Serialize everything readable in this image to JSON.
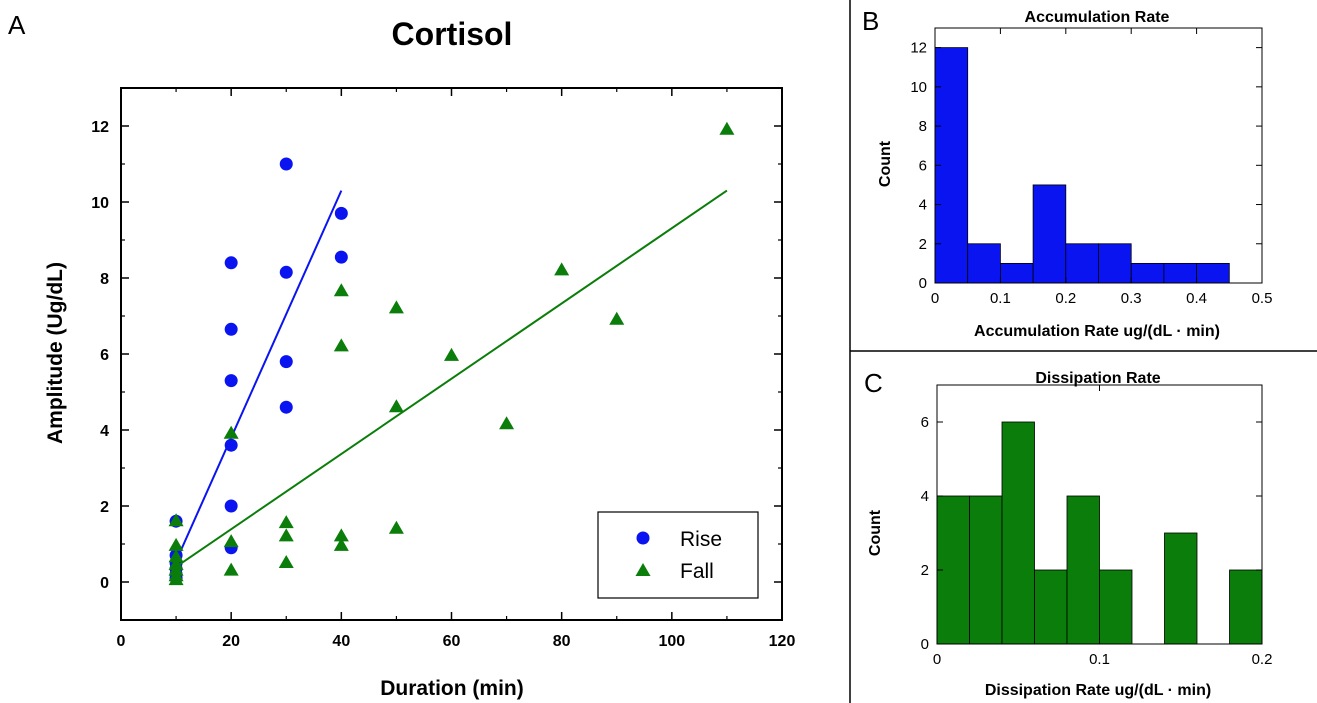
{
  "panels": {
    "a": "A",
    "b": "B",
    "c": "C"
  },
  "colors": {
    "rise": "#0a14f0",
    "fall": "#0a7d0a",
    "frame": "#000000"
  },
  "chart_data": [
    {
      "panel": "A",
      "type": "scatter",
      "title": "Cortisol",
      "xlabel": "Duration (min)",
      "ylabel": "Amplitude (Ug/dL)",
      "xlim": [
        0,
        120
      ],
      "ylim": [
        -1,
        13
      ],
      "xticks": [
        "0",
        "20",
        "40",
        "60",
        "80",
        "100",
        "120"
      ],
      "yticks": [
        "0",
        "2",
        "4",
        "6",
        "8",
        "10",
        "12"
      ],
      "legend_position": "bottom-right",
      "series": [
        {
          "name": "Rise",
          "marker": "circle",
          "color": "#0a14f0",
          "points": [
            [
              10,
              1.6
            ],
            [
              10,
              0.7
            ],
            [
              10,
              0.5
            ],
            [
              10,
              0.35
            ],
            [
              10,
              0.2
            ],
            [
              10,
              0.1
            ],
            [
              20,
              8.4
            ],
            [
              20,
              6.65
            ],
            [
              20,
              5.3
            ],
            [
              20,
              3.6
            ],
            [
              20,
              2.0
            ],
            [
              20,
              0.9
            ],
            [
              30,
              11.0
            ],
            [
              30,
              8.15
            ],
            [
              30,
              5.8
            ],
            [
              30,
              4.6
            ],
            [
              40,
              9.7
            ],
            [
              40,
              8.55
            ]
          ],
          "fit": [
            [
              10,
              0.55
            ],
            [
              40,
              10.3
            ]
          ]
        },
        {
          "name": "Fall",
          "marker": "triangle",
          "color": "#0a7d0a",
          "points": [
            [
              10,
              1.6
            ],
            [
              10,
              0.95
            ],
            [
              10,
              0.65
            ],
            [
              10,
              0.45
            ],
            [
              10,
              0.3
            ],
            [
              10,
              0.15
            ],
            [
              10,
              0.05
            ],
            [
              20,
              3.9
            ],
            [
              20,
              1.05
            ],
            [
              20,
              0.3
            ],
            [
              30,
              1.55
            ],
            [
              30,
              1.2
            ],
            [
              30,
              0.5
            ],
            [
              40,
              7.65
            ],
            [
              40,
              6.2
            ],
            [
              40,
              1.2
            ],
            [
              40,
              0.95
            ],
            [
              50,
              7.2
            ],
            [
              50,
              4.6
            ],
            [
              50,
              1.4
            ],
            [
              60,
              5.95
            ],
            [
              70,
              4.15
            ],
            [
              80,
              8.2
            ],
            [
              90,
              6.9
            ],
            [
              110,
              11.9
            ]
          ],
          "fit": [
            [
              10,
              0.4
            ],
            [
              110,
              10.3
            ]
          ]
        }
      ]
    },
    {
      "panel": "B",
      "type": "bar",
      "title": "Accumulation  Rate",
      "xlabel": "Accumulation  Rate ug/(dL · min)",
      "ylabel": "Count",
      "bin_edges": [
        0,
        0.05,
        0.1,
        0.15,
        0.2,
        0.25,
        0.3,
        0.35,
        0.4,
        0.45
      ],
      "values": [
        12,
        2,
        1,
        5,
        2,
        2,
        1,
        1,
        1
      ],
      "xlim": [
        0,
        0.5
      ],
      "ylim": [
        0,
        13
      ],
      "xticks": [
        "0",
        "0.1",
        "0.2",
        "0.3",
        "0.4",
        "0.5"
      ],
      "yticks": [
        "0",
        "2",
        "4",
        "6",
        "8",
        "10",
        "12"
      ],
      "color": "#0a14f0"
    },
    {
      "panel": "C",
      "type": "bar",
      "title": "Dissipation  Rate",
      "xlabel": "Dissipation  Rate ug/(dL · min)",
      "ylabel": "Count",
      "bin_edges": [
        0,
        0.02,
        0.04,
        0.06,
        0.08,
        0.1,
        0.12,
        0.14,
        0.16,
        0.18,
        0.2
      ],
      "values": [
        4,
        4,
        6,
        2,
        4,
        2,
        0,
        3,
        0,
        2
      ],
      "xlim": [
        0,
        0.2
      ],
      "ylim": [
        0,
        7
      ],
      "xticks": [
        "0",
        "0.1",
        "0.2"
      ],
      "yticks": [
        "0",
        "2",
        "4",
        "6"
      ],
      "color": "#0a7d0a"
    }
  ]
}
